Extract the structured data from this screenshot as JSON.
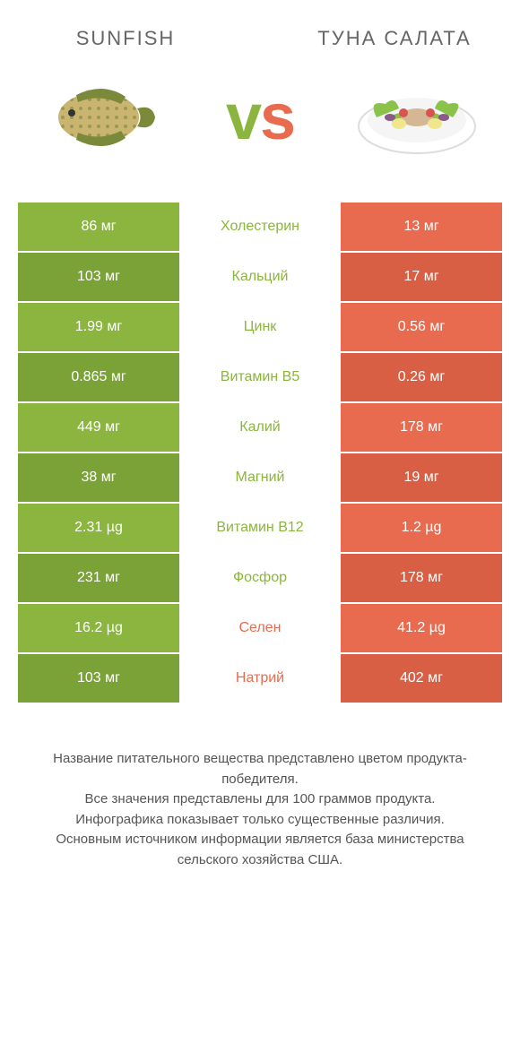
{
  "colors": {
    "left": "#8bb53e",
    "right": "#e86b4f",
    "left_dark": "#7aa236",
    "right_dark": "#d95f44"
  },
  "header": {
    "left_title": "Sunfish",
    "right_title": "Туна Салата",
    "vs": "vs"
  },
  "rows": [
    {
      "left": "86 мг",
      "label": "Холестерин",
      "right": "13 мг",
      "winner": "left"
    },
    {
      "left": "103 мг",
      "label": "Кальций",
      "right": "17 мг",
      "winner": "left"
    },
    {
      "left": "1.99 мг",
      "label": "Цинк",
      "right": "0.56 мг",
      "winner": "left"
    },
    {
      "left": "0.865 мг",
      "label": "Витамин B5",
      "right": "0.26 мг",
      "winner": "left"
    },
    {
      "left": "449 мг",
      "label": "Калий",
      "right": "178 мг",
      "winner": "left"
    },
    {
      "left": "38 мг",
      "label": "Магний",
      "right": "19 мг",
      "winner": "left"
    },
    {
      "left": "2.31 µg",
      "label": "Витамин B12",
      "right": "1.2 µg",
      "winner": "left"
    },
    {
      "left": "231 мг",
      "label": "Фосфор",
      "right": "178 мг",
      "winner": "left"
    },
    {
      "left": "16.2 µg",
      "label": "Селен",
      "right": "41.2 µg",
      "winner": "right"
    },
    {
      "left": "103 мг",
      "label": "Натрий",
      "right": "402 мг",
      "winner": "right"
    }
  ],
  "footer": {
    "line1": "Название питательного вещества представлено цветом продукта-победителя.",
    "line2": "Все значения представлены для 100 граммов продукта.",
    "line3": "Инфографика показывает только существенные различия.",
    "line4": "Основным источником информации является база министерства сельского хозяйства США."
  }
}
